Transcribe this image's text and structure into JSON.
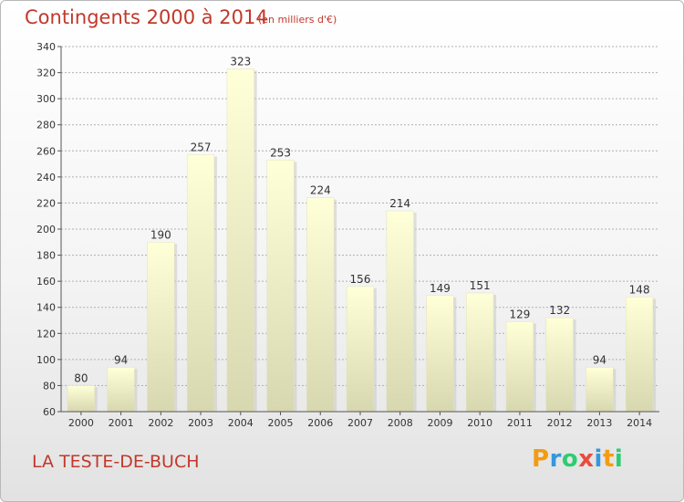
{
  "header": {
    "title": "Contingents 2000 à 2014",
    "subtitle": "(en milliers d'€)"
  },
  "footer": {
    "place": "LA TESTE-DE-BUCH",
    "logo_letters": [
      "P",
      "r",
      "o",
      "x",
      "i",
      "t",
      "i"
    ],
    "logo_colors": [
      "#f39c12",
      "#3498db",
      "#2ecc71",
      "#e74c3c",
      "#3498db",
      "#f39c12",
      "#2ecc71"
    ]
  },
  "colors": {
    "title": "#c0392b",
    "bar_top": "#ffffd8",
    "bar_bottom": "#d7d7b0",
    "grid": "#b0b0b0"
  },
  "chart_data": {
    "type": "bar",
    "title": "Contingents 2000 à 2014",
    "subtitle": "(en milliers d'€)",
    "categories": [
      "2000",
      "2001",
      "2002",
      "2003",
      "2004",
      "2005",
      "2006",
      "2007",
      "2008",
      "2009",
      "2010",
      "2011",
      "2012",
      "2013",
      "2014"
    ],
    "values": [
      80,
      94,
      190,
      257,
      323,
      253,
      224,
      156,
      214,
      149,
      151,
      129,
      132,
      94,
      148
    ],
    "xlabel": "",
    "ylabel": "",
    "ylim": [
      60,
      340
    ],
    "yticks": [
      60,
      80,
      100,
      120,
      140,
      160,
      180,
      200,
      220,
      240,
      260,
      280,
      300,
      320,
      340
    ],
    "grid": true,
    "data_labels": true
  }
}
